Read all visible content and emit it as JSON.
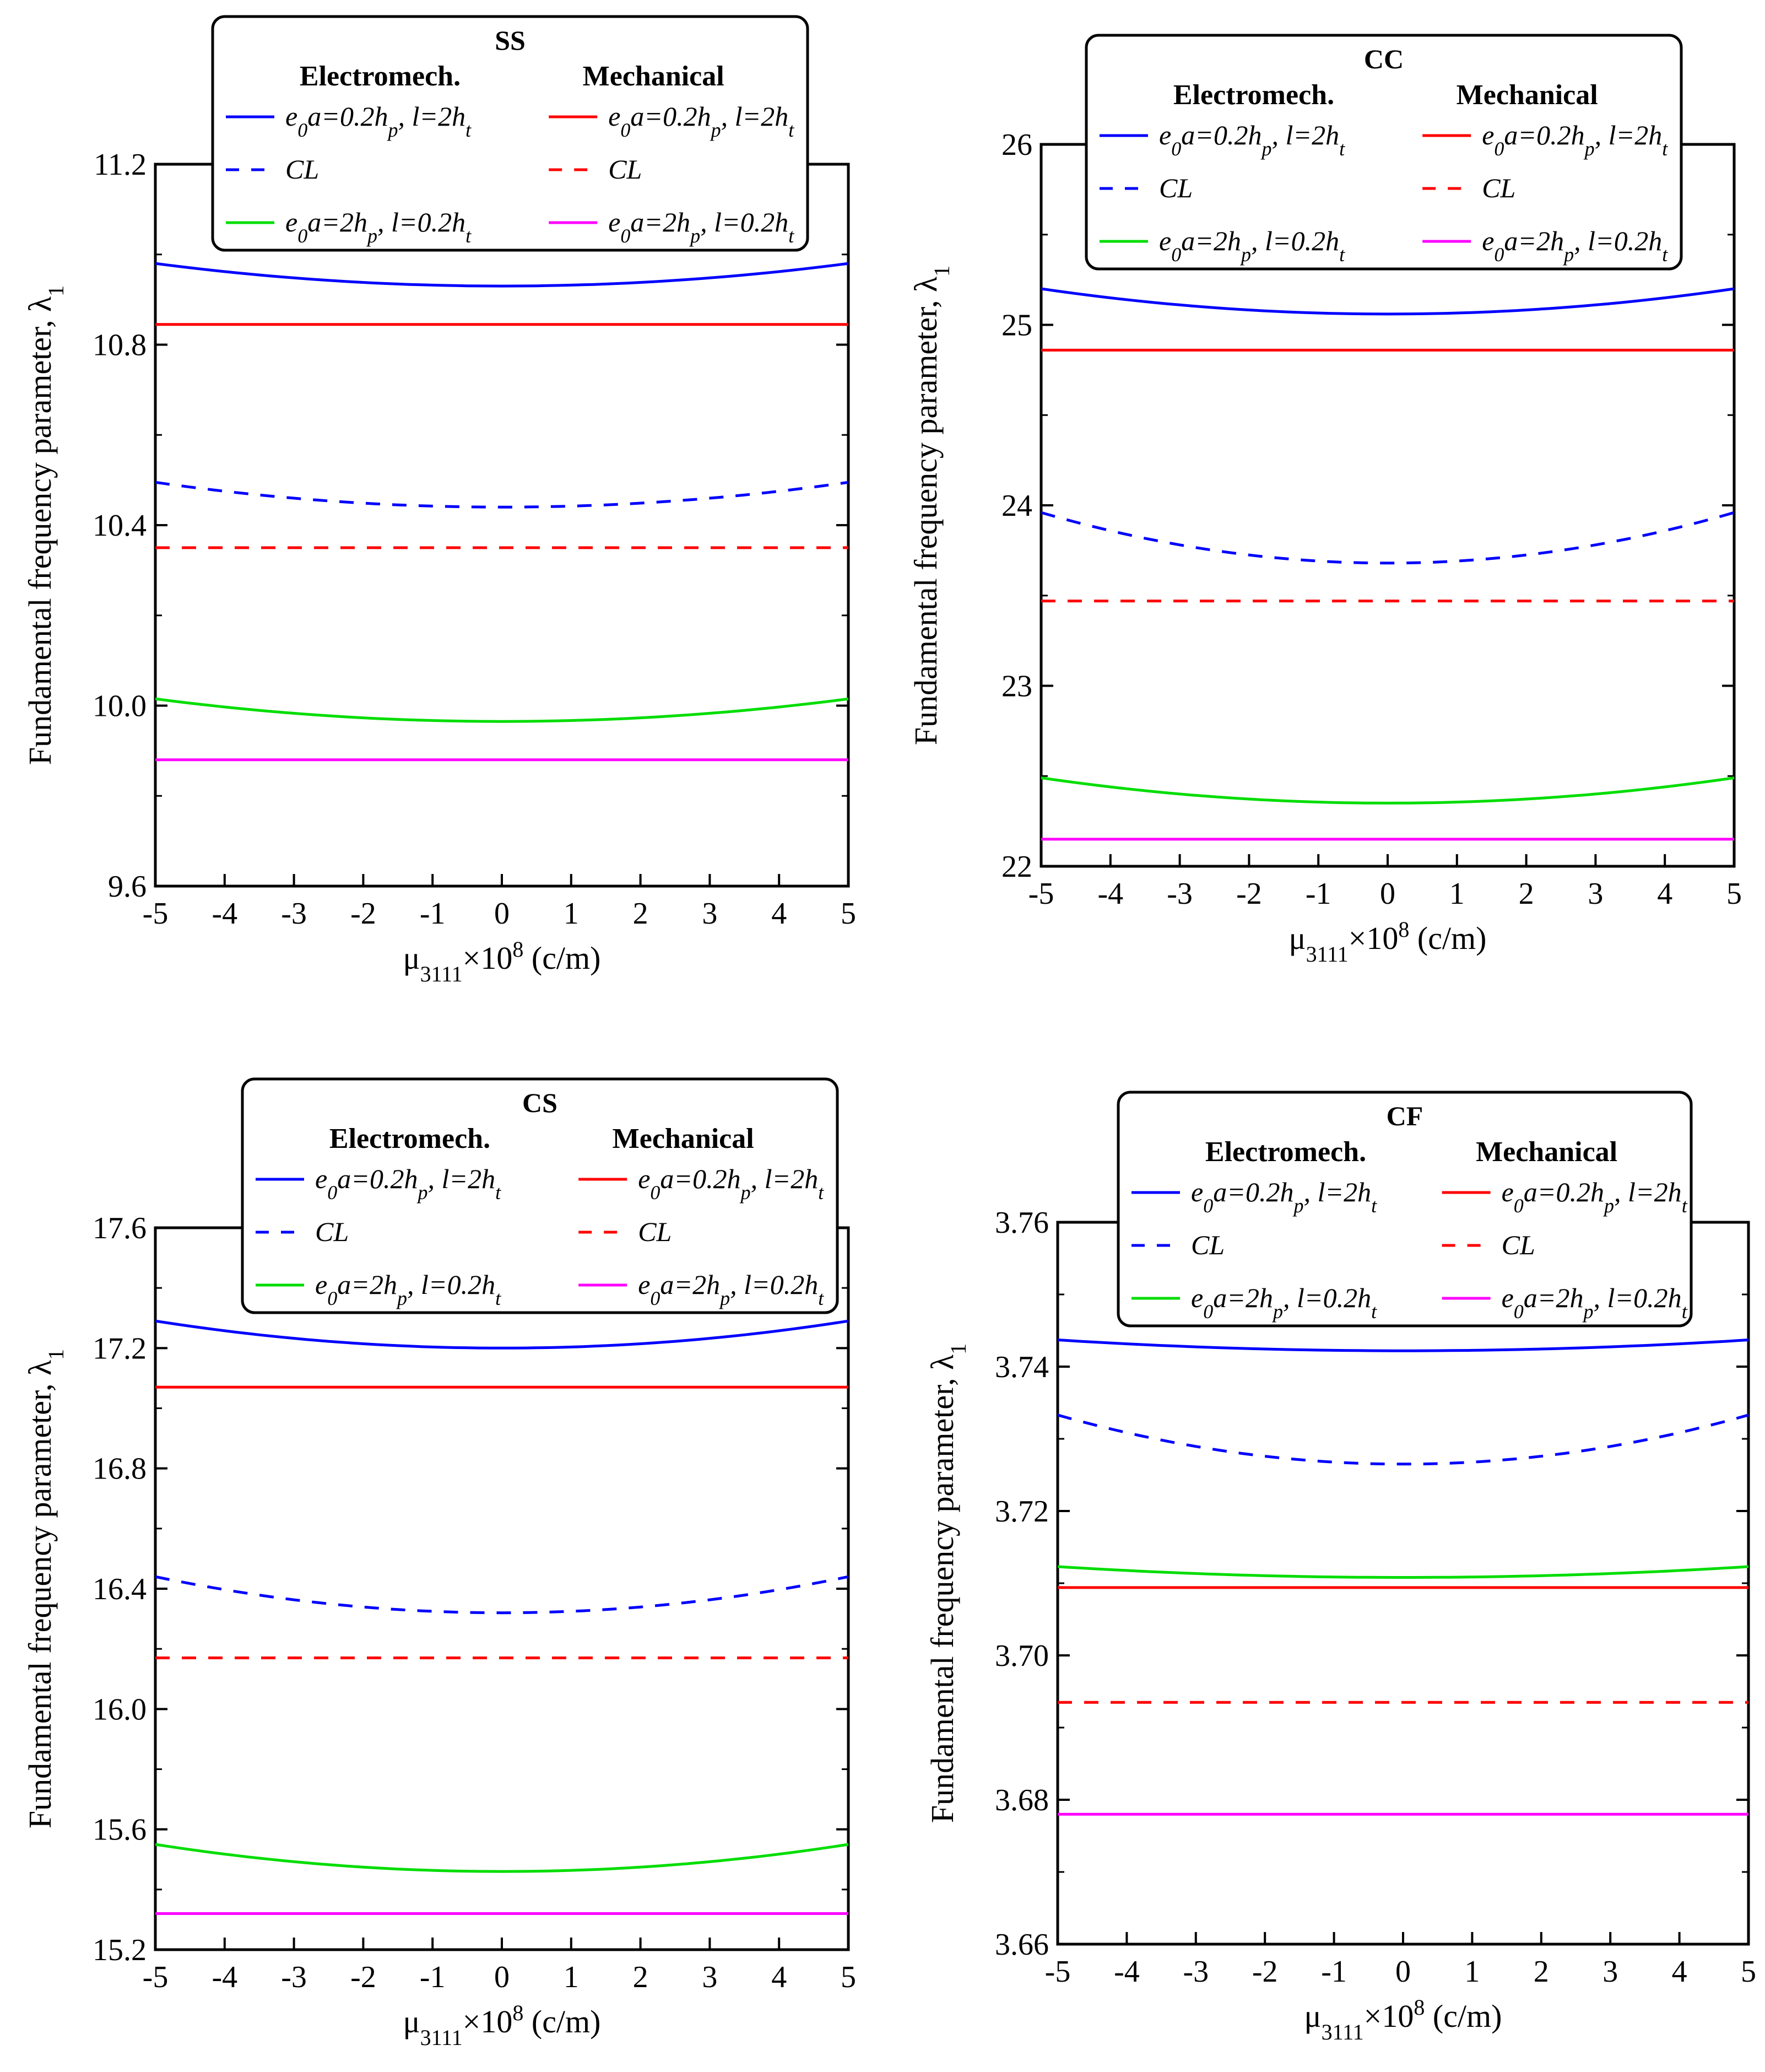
{
  "chart_data": [
    {
      "type": "line",
      "id": "ss",
      "title": "SS",
      "xlabel": "μ3111×10^8 (c/m)",
      "xlabel_parts": {
        "base": "μ",
        "sub": "3111",
        "mid": "×10",
        "sup": "8",
        "tail": " (c/m)"
      },
      "ylabel": "Fundamental frequency parameter, λ1",
      "ylabel_parts": {
        "main": "Fundamental frequency parameter, λ",
        "sub": "1"
      },
      "xlim": [
        -5,
        5
      ],
      "ylim": [
        9.6,
        11.2
      ],
      "xticks": [
        -5,
        -4,
        -3,
        -2,
        -1,
        0,
        1,
        2,
        3,
        4,
        5
      ],
      "yticks": [
        9.6,
        10.0,
        10.4,
        10.8,
        11.2
      ],
      "ytick_labels": [
        "9.6",
        "10.0",
        "10.4",
        "10.8",
        "11.2"
      ],
      "xtick_labels": [
        "-5",
        "-4",
        "-3",
        "-2",
        "-1",
        "0",
        "1",
        "2",
        "3",
        "4",
        "5"
      ],
      "legend": {
        "col1_head": "Electromech.",
        "col2_head": "Mechanical",
        "rows": [
          {
            "em": "e0a=0.2hp, l=2ht",
            "me": "e0a=0.2hp, l=2ht"
          },
          {
            "em": "CL",
            "me": "CL"
          },
          {
            "em": "e0a=2hp, l=0.2ht",
            "me": "e0a=2hp, l=0.2ht"
          }
        ]
      },
      "series": [
        {
          "name": "Electromech. e0a=0.2hp, l=2ht",
          "color": "#0000ff",
          "dash": "solid",
          "center": 10.93,
          "edge": 10.98
        },
        {
          "name": "Mechanical e0a=0.2hp, l=2ht",
          "color": "#ff0000",
          "dash": "solid",
          "center": 10.845,
          "edge": 10.845
        },
        {
          "name": "Electromech. CL",
          "color": "#0000ff",
          "dash": "dashed",
          "center": 10.44,
          "edge": 10.495
        },
        {
          "name": "Mechanical CL",
          "color": "#ff0000",
          "dash": "dashed",
          "center": 10.35,
          "edge": 10.35
        },
        {
          "name": "Electromech. e0a=2hp, l=0.2ht",
          "color": "#00dd00",
          "dash": "solid",
          "center": 9.965,
          "edge": 10.015
        },
        {
          "name": "Mechanical e0a=2hp, l=0.2ht",
          "color": "#ff00ff",
          "dash": "solid",
          "center": 9.88,
          "edge": 9.88
        }
      ]
    },
    {
      "type": "line",
      "id": "cc",
      "title": "CC",
      "xlabel": "μ3111×10^8 (c/m)",
      "xlabel_parts": {
        "base": "μ",
        "sub": "3111",
        "mid": "×10",
        "sup": "8",
        "tail": " (c/m)"
      },
      "ylabel": "Fundamental frequency parameter, λ1",
      "ylabel_parts": {
        "main": "Fundamental frequency parameter, λ",
        "sub": "1"
      },
      "xlim": [
        -5,
        5
      ],
      "ylim": [
        22,
        26
      ],
      "xticks": [
        -5,
        -4,
        -3,
        -2,
        -1,
        0,
        1,
        2,
        3,
        4,
        5
      ],
      "yticks": [
        22,
        23,
        24,
        25,
        26
      ],
      "ytick_labels": [
        "22",
        "23",
        "24",
        "25",
        "26"
      ],
      "xtick_labels": [
        "-5",
        "-4",
        "-3",
        "-2",
        "-1",
        "0",
        "1",
        "2",
        "3",
        "4",
        "5"
      ],
      "legend": {
        "col1_head": "Electromech.",
        "col2_head": "Mechanical",
        "rows": [
          {
            "em": "e0a=0.2hp, l=2ht",
            "me": "e0a=0.2hp, l=2ht"
          },
          {
            "em": "CL",
            "me": "CL"
          },
          {
            "em": "e0a=2hp, l=0.2ht",
            "me": "e0a=2hp, l=0.2ht"
          }
        ]
      },
      "series": [
        {
          "name": "Electromech. e0a=0.2hp, l=2ht",
          "color": "#0000ff",
          "dash": "solid",
          "center": 25.06,
          "edge": 25.2
        },
        {
          "name": "Mechanical e0a=0.2hp, l=2ht",
          "color": "#ff0000",
          "dash": "solid",
          "center": 24.86,
          "edge": 24.86
        },
        {
          "name": "Electromech. CL",
          "color": "#0000ff",
          "dash": "dashed",
          "center": 23.68,
          "edge": 23.96
        },
        {
          "name": "Mechanical CL",
          "color": "#ff0000",
          "dash": "dashed",
          "center": 23.47,
          "edge": 23.47
        },
        {
          "name": "Electromech. e0a=2hp, l=0.2ht",
          "color": "#00dd00",
          "dash": "solid",
          "center": 22.35,
          "edge": 22.49
        },
        {
          "name": "Mechanical e0a=2hp, l=0.2ht",
          "color": "#ff00ff",
          "dash": "solid",
          "center": 22.15,
          "edge": 22.15
        }
      ]
    },
    {
      "type": "line",
      "id": "cs",
      "title": "CS",
      "xlabel": "μ3111×10^8 (c/m)",
      "xlabel_parts": {
        "base": "μ",
        "sub": "3111",
        "mid": "×10",
        "sup": "8",
        "tail": " (c/m)"
      },
      "ylabel": "Fundamental frequency parameter, λ1",
      "ylabel_parts": {
        "main": "Fundamental frequency parameter, λ",
        "sub": "1"
      },
      "xlim": [
        -5,
        5
      ],
      "ylim": [
        15.2,
        17.6
      ],
      "xticks": [
        -5,
        -4,
        -3,
        -2,
        -1,
        0,
        1,
        2,
        3,
        4,
        5
      ],
      "yticks": [
        15.2,
        15.6,
        16.0,
        16.4,
        16.8,
        17.2,
        17.6
      ],
      "ytick_labels": [
        "15.2",
        "15.6",
        "16.0",
        "16.4",
        "16.8",
        "17.2",
        "17.6"
      ],
      "xtick_labels": [
        "-5",
        "-4",
        "-3",
        "-2",
        "-1",
        "0",
        "1",
        "2",
        "3",
        "4",
        "5"
      ],
      "legend": {
        "col1_head": "Electromech.",
        "col2_head": "Mechanical",
        "rows": [
          {
            "em": "e0a=0.2hp, l=2ht",
            "me": "e0a=0.2hp, l=2ht"
          },
          {
            "em": "CL",
            "me": "CL"
          },
          {
            "em": "e0a=2hp, l=0.2ht",
            "me": "e0a=2hp, l=0.2ht"
          }
        ]
      },
      "series": [
        {
          "name": "Electromech. e0a=0.2hp, l=2ht",
          "color": "#0000ff",
          "dash": "solid",
          "center": 17.2,
          "edge": 17.29
        },
        {
          "name": "Mechanical e0a=0.2hp, l=2ht",
          "color": "#ff0000",
          "dash": "solid",
          "center": 17.07,
          "edge": 17.07
        },
        {
          "name": "Electromech. CL",
          "color": "#0000ff",
          "dash": "dashed",
          "center": 16.32,
          "edge": 16.44
        },
        {
          "name": "Mechanical CL",
          "color": "#ff0000",
          "dash": "dashed",
          "center": 16.17,
          "edge": 16.17
        },
        {
          "name": "Electromech. e0a=2hp, l=0.2ht",
          "color": "#00dd00",
          "dash": "solid",
          "center": 15.46,
          "edge": 15.55
        },
        {
          "name": "Mechanical e0a=2hp, l=0.2ht",
          "color": "#ff00ff",
          "dash": "solid",
          "center": 15.32,
          "edge": 15.32
        }
      ]
    },
    {
      "type": "line",
      "id": "cf",
      "title": "CF",
      "xlabel": "μ3111×10^8 (c/m)",
      "xlabel_parts": {
        "base": "μ",
        "sub": "3111",
        "mid": "×10",
        "sup": "8",
        "tail": " (c/m)"
      },
      "ylabel": "Fundamental frequency parameter, λ1",
      "ylabel_parts": {
        "main": "Fundamental frequency parameter, λ",
        "sub": "1"
      },
      "xlim": [
        -5,
        5
      ],
      "ylim": [
        3.66,
        3.76
      ],
      "xticks": [
        -5,
        -4,
        -3,
        -2,
        -1,
        0,
        1,
        2,
        3,
        4,
        5
      ],
      "yticks": [
        3.66,
        3.68,
        3.7,
        3.72,
        3.74,
        3.76
      ],
      "ytick_labels": [
        "3.66",
        "3.68",
        "3.70",
        "3.72",
        "3.74",
        "3.76"
      ],
      "xtick_labels": [
        "-5",
        "-4",
        "-3",
        "-2",
        "-1",
        "0",
        "1",
        "2",
        "3",
        "4",
        "5"
      ],
      "legend": {
        "col1_head": "Electromech.",
        "col2_head": "Mechanical",
        "rows": [
          {
            "em": "e0a=0.2hp, l=2ht",
            "me": "e0a=0.2hp, l=2ht"
          },
          {
            "em": "CL",
            "me": "CL"
          },
          {
            "em": "e0a=2hp, l=0.2ht",
            "me": "e0a=2hp, l=0.2ht"
          }
        ]
      },
      "series": [
        {
          "name": "Electromech. e0a=0.2hp, l=2ht",
          "color": "#0000ff",
          "dash": "solid",
          "center": 3.7422,
          "edge": 3.7437
        },
        {
          "name": "Electromech. CL",
          "color": "#0000ff",
          "dash": "dashed",
          "center": 3.7265,
          "edge": 3.7333
        },
        {
          "name": "Electromech. e0a=2hp, l=0.2ht",
          "color": "#00dd00",
          "dash": "solid",
          "center": 3.7108,
          "edge": 3.7123
        },
        {
          "name": "Mechanical e0a=0.2hp, l=2ht",
          "color": "#ff0000",
          "dash": "solid",
          "center": 3.7094,
          "edge": 3.7094
        },
        {
          "name": "Mechanical CL",
          "color": "#ff0000",
          "dash": "dashed",
          "center": 3.6935,
          "edge": 3.6935
        },
        {
          "name": "Mechanical e0a=2hp, l=0.2ht",
          "color": "#ff00ff",
          "dash": "solid",
          "center": 3.678,
          "edge": 3.678
        }
      ]
    }
  ]
}
